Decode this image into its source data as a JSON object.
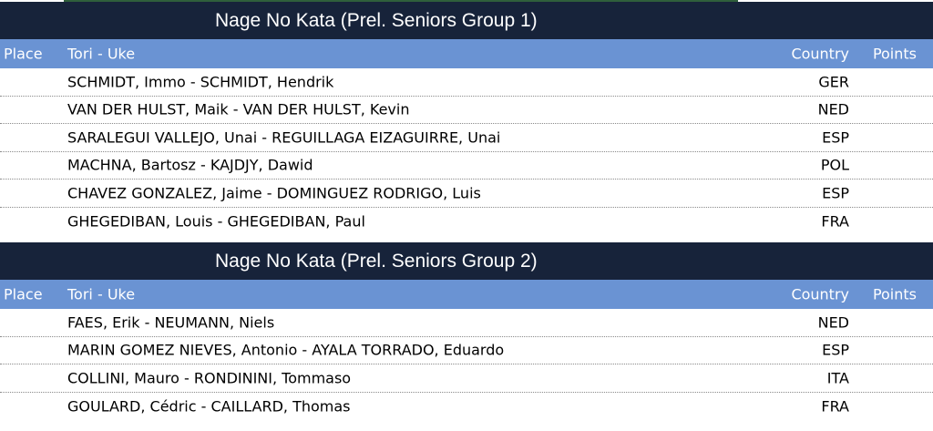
{
  "columns": {
    "place": "Place",
    "name": "Tori - Uke",
    "country": "Country",
    "points": "Points"
  },
  "groups": [
    {
      "title": "Nage No Kata (Prel. Seniors Group 1)",
      "rows": [
        {
          "name": "SCHMIDT, Immo - SCHMIDT, Hendrik",
          "country": "GER"
        },
        {
          "name": "VAN DER HULST, Maik - VAN DER HULST, Kevin",
          "country": "NED"
        },
        {
          "name": "SARALEGUI VALLEJO, Unai - REGUILLAGA EIZAGUIRRE, Unai",
          "country": "ESP"
        },
        {
          "name": "MACHNA, Bartosz - KAJDJY, Dawid",
          "country": "POL"
        },
        {
          "name": "CHAVEZ GONZALEZ, Jaime - DOMINGUEZ RODRIGO, Luis",
          "country": "ESP"
        },
        {
          "name": "GHEGEDIBAN, Louis - GHEGEDIBAN, Paul",
          "country": "FRA"
        }
      ]
    },
    {
      "title": "Nage No Kata (Prel. Seniors Group 2)",
      "rows": [
        {
          "name": "FAES, Erik - NEUMANN, Niels",
          "country": "NED"
        },
        {
          "name": "MARIN GOMEZ NIEVES, Antonio - AYALA TORRADO, Eduardo",
          "country": "ESP"
        },
        {
          "name": "COLLINI, Mauro  - RONDININI, Tommaso",
          "country": "ITA"
        },
        {
          "name": "GOULARD, Cédric - CAILLARD, Thomas",
          "country": "FRA"
        }
      ]
    }
  ]
}
